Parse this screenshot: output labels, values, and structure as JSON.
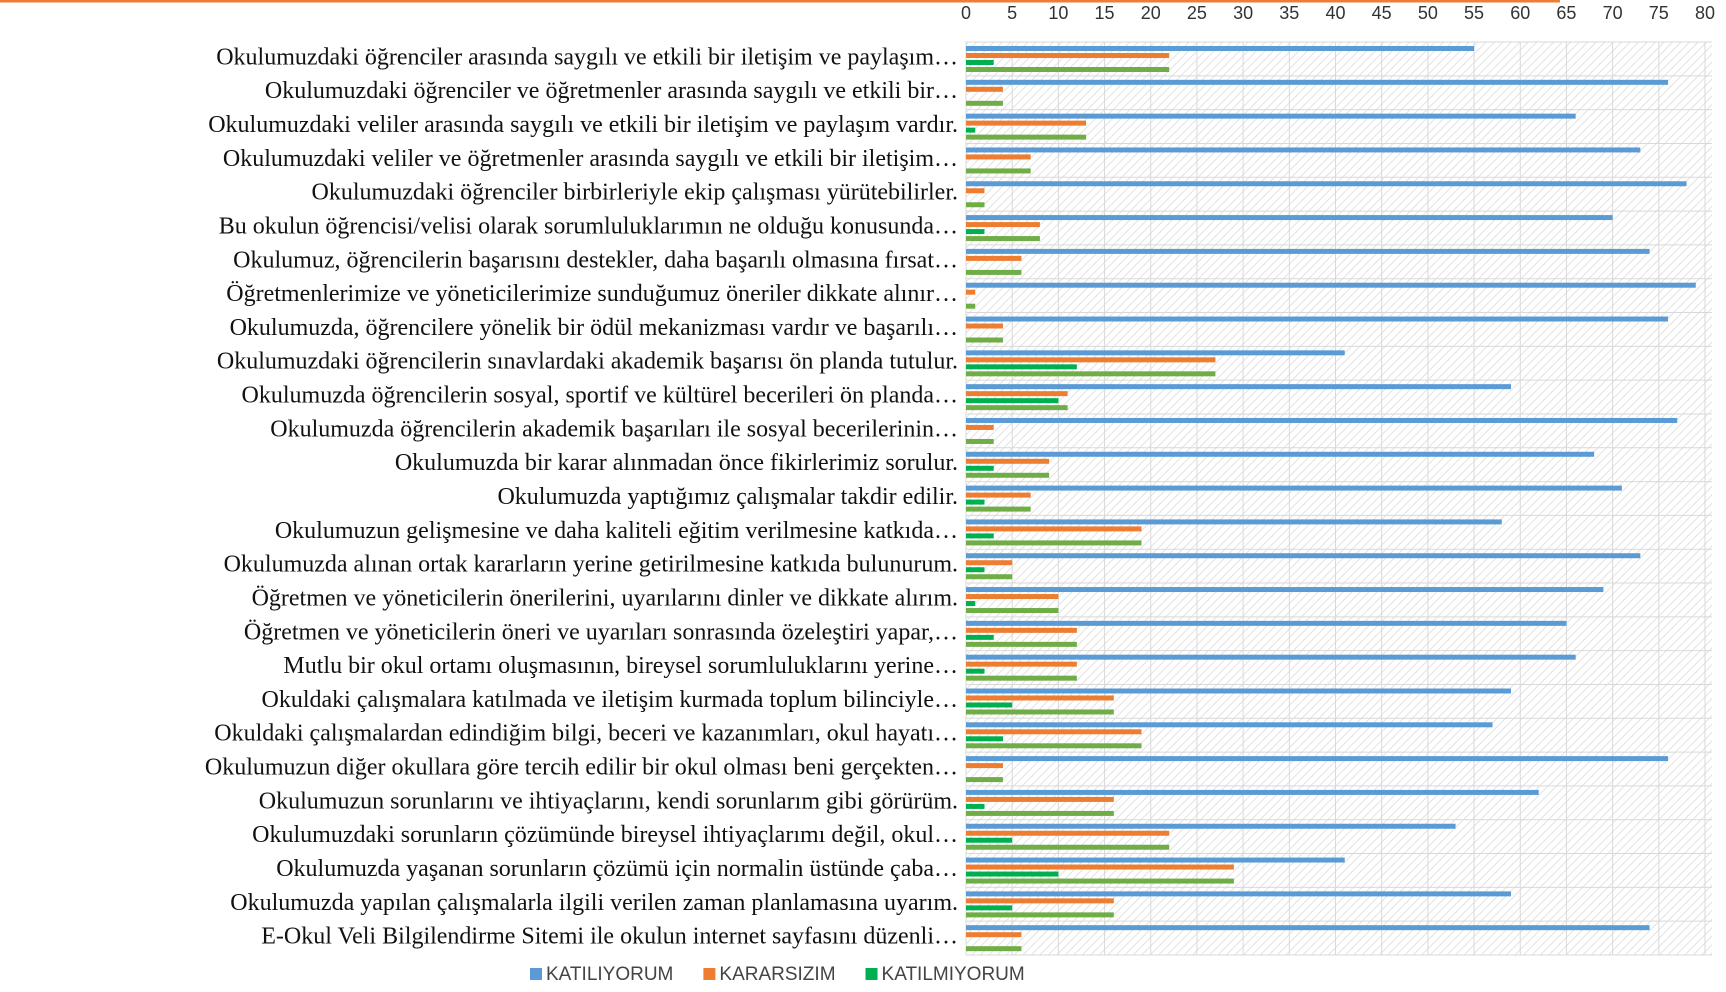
{
  "chart_data": {
    "type": "barh",
    "categories": [
      "Okulumuzdaki öğrenciler arasında saygılı ve etkili bir iletişim ve paylaşım…",
      "Okulumuzdaki öğrenciler ve öğretmenler arasında saygılı ve etkili bir…",
      "Okulumuzdaki veliler arasında saygılı ve etkili bir iletişim ve paylaşım vardır.",
      "Okulumuzdaki veliler ve öğretmenler arasında saygılı ve etkili bir iletişim…",
      "Okulumuzdaki öğrenciler birbirleriyle ekip çalışması yürütebilirler.",
      "Bu okulun öğrencisi/velisi olarak sorumluluklarımın ne olduğu konusunda…",
      "Okulumuz, öğrencilerin başarısını destekler, daha başarılı olmasına fırsat…",
      "Öğretmenlerimize ve yöneticilerimize sunduğumuz öneriler dikkate alınır…",
      "Okulumuzda, öğrencilere yönelik bir ödül mekanizması vardır ve başarılı…",
      "Okulumuzdaki öğrencilerin sınavlardaki akademik başarısı ön planda tutulur.",
      "Okulumuzda öğrencilerin sosyal, sportif ve kültürel becerileri ön planda…",
      "Okulumuzda öğrencilerin akademik başarıları ile sosyal becerilerinin…",
      "Okulumuzda bir karar alınmadan önce fikirlerimiz sorulur.",
      "Okulumuzda yaptığımız çalışmalar takdir edilir.",
      "Okulumuzun gelişmesine ve daha kaliteli eğitim verilmesine katkıda…",
      "Okulumuzda alınan ortak kararların yerine getirilmesine katkıda bulunurum.",
      "Öğretmen ve yöneticilerin önerilerini, uyarılarını dinler ve dikkate alırım.",
      "Öğretmen ve yöneticilerin öneri ve uyarıları sonrasında özeleştiri yapar,…",
      "Mutlu bir okul ortamı oluşmasının, bireysel sorumluluklarını yerine…",
      "Okuldaki çalışmalara katılmada ve iletişim kurmada toplum bilinciyle…",
      "Okuldaki çalışmalardan edindiğim bilgi, beceri ve kazanımları, okul hayatı…",
      "Okulumuzun diğer okullara göre tercih edilir bir okul olması beni gerçekten…",
      "Okulumuzun sorunlarını ve ihtiyaçlarını, kendi sorunlarım gibi görürüm.",
      "Okulumuzdaki sorunların çözümünde bireysel ihtiyaçlarımı değil, okul…",
      "Okulumuzda yaşanan sorunların çözümü için normalin üstünde çaba…",
      "Okulumuzda yapılan çalışmalarla ilgili verilen zaman planlamasına uyarım.",
      "E-Okul Veli Bilgilendirme Sitemi ile okulun internet sayfasını düzenli…"
    ],
    "series": [
      {
        "name": "KATILIYORUM",
        "color": "#5b9bd5",
        "values": [
          55,
          76,
          66,
          73,
          78,
          70,
          74,
          79,
          76,
          41,
          59,
          77,
          68,
          71,
          58,
          73,
          69,
          65,
          66,
          59,
          57,
          76,
          62,
          53,
          41,
          59,
          74
        ]
      },
      {
        "name": "KARARSIZIM",
        "color": "#ed7d31",
        "values": [
          22,
          4,
          13,
          7,
          2,
          8,
          6,
          1,
          4,
          27,
          11,
          3,
          9,
          7,
          19,
          5,
          10,
          12,
          12,
          16,
          19,
          4,
          16,
          22,
          29,
          16,
          6
        ]
      },
      {
        "name": "KATILMIYORUM",
        "color": "#00b050",
        "values": [
          3,
          0,
          1,
          0,
          0,
          2,
          0,
          0,
          0,
          12,
          10,
          0,
          3,
          2,
          3,
          2,
          1,
          3,
          2,
          5,
          4,
          0,
          2,
          5,
          10,
          5,
          0
        ]
      },
      {
        "color": "#70ad47",
        "legend": false,
        "values": [
          22,
          4,
          13,
          7,
          2,
          8,
          6,
          1,
          4,
          27,
          11,
          3,
          9,
          7,
          19,
          5,
          10,
          12,
          12,
          16,
          19,
          4,
          16,
          22,
          29,
          16,
          6
        ]
      }
    ],
    "xlim": [
      0,
      80
    ],
    "xticks": [
      0,
      5,
      10,
      15,
      20,
      25,
      30,
      35,
      40,
      45,
      50,
      55,
      60,
      65,
      70,
      75,
      80
    ],
    "grid": true
  }
}
